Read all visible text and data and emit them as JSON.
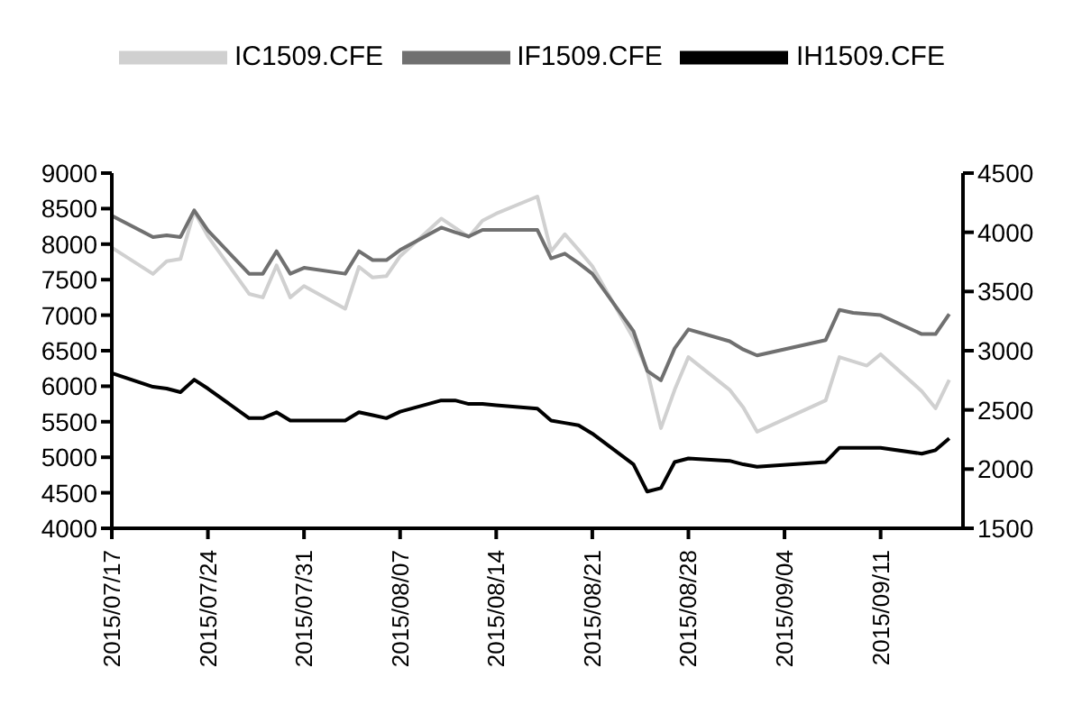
{
  "chart_data": {
    "type": "line",
    "legend": "top",
    "x": [
      "2015-07-17",
      "2015-07-20",
      "2015-07-21",
      "2015-07-22",
      "2015-07-23",
      "2015-07-24",
      "2015-07-27",
      "2015-07-28",
      "2015-07-29",
      "2015-07-30",
      "2015-07-31",
      "2015-08-03",
      "2015-08-04",
      "2015-08-05",
      "2015-08-06",
      "2015-08-07",
      "2015-08-10",
      "2015-08-11",
      "2015-08-12",
      "2015-08-13",
      "2015-08-14",
      "2015-08-17",
      "2015-08-18",
      "2015-08-19",
      "2015-08-20",
      "2015-08-21",
      "2015-08-24",
      "2015-08-25",
      "2015-08-26",
      "2015-08-27",
      "2015-08-28",
      "2015-08-31",
      "2015-09-01",
      "2015-09-02",
      "2015-09-07",
      "2015-09-08",
      "2015-09-09",
      "2015-09-10",
      "2015-09-11",
      "2015-09-14",
      "2015-09-15",
      "2015-09-16"
    ],
    "series": [
      {
        "name": "IC1509.CFE",
        "color": "#d0d0d0",
        "values": [
          7950,
          7580,
          7760,
          7790,
          8460,
          8110,
          7300,
          7250,
          7700,
          7250,
          7410,
          7090,
          7680,
          7530,
          7550,
          7830,
          8360,
          8230,
          8100,
          8330,
          8430,
          8670,
          7900,
          8140,
          7920,
          7690,
          6670,
          6220,
          5410,
          5950,
          6410,
          5950,
          5700,
          5360,
          5800,
          6410,
          6350,
          6290,
          6450,
          5930,
          5690,
          6090
        ]
      },
      {
        "name": "IF1509.CFE",
        "color": "#707070",
        "axis": "y2",
        "values": [
          4140,
          3960,
          3975,
          3960,
          4185,
          4015,
          3650,
          3650,
          3840,
          3650,
          3700,
          3650,
          3840,
          3765,
          3765,
          3850,
          4040,
          4000,
          3965,
          4020,
          4020,
          4020,
          3780,
          3820,
          3740,
          3650,
          3165,
          2830,
          2750,
          3020,
          3180,
          3080,
          3010,
          2960,
          3090,
          3345,
          3320,
          3310,
          3300,
          3140,
          3140,
          3310
        ]
      },
      {
        "name": "IH1509.CFE",
        "color": "#000000",
        "axis": "y2",
        "values": [
          2810,
          2695,
          2680,
          2650,
          2755,
          2680,
          2430,
          2430,
          2480,
          2410,
          2410,
          2410,
          2480,
          2455,
          2430,
          2485,
          2580,
          2580,
          2550,
          2550,
          2540,
          2510,
          2410,
          2390,
          2370,
          2300,
          2040,
          1810,
          1840,
          2060,
          2090,
          2070,
          2040,
          2020,
          2060,
          2180,
          2180,
          2180,
          2180,
          2130,
          2160,
          2260
        ]
      }
    ],
    "xlim": [
      "2015-07-17",
      "2015-09-17"
    ],
    "xticks": [
      {
        "value": "2015-07-17",
        "label": "2015/07/17"
      },
      {
        "value": "2015-07-24",
        "label": "2015/07/24"
      },
      {
        "value": "2015-07-31",
        "label": "2015/07/31"
      },
      {
        "value": "2015-08-07",
        "label": "2015/08/07"
      },
      {
        "value": "2015-08-14",
        "label": "2015/08/14"
      },
      {
        "value": "2015-08-21",
        "label": "2015/08/21"
      },
      {
        "value": "2015-08-28",
        "label": "2015/08/28"
      },
      {
        "value": "2015-09-04",
        "label": "2015/09/04"
      },
      {
        "value": "2015-09-11",
        "label": "2015/09/11"
      }
    ],
    "ylim": [
      4000,
      9000
    ],
    "yticks": [
      4000,
      4500,
      5000,
      5500,
      6000,
      6500,
      7000,
      7500,
      8000,
      8500,
      9000
    ],
    "y2lim": [
      1500,
      4500
    ],
    "y2ticks": [
      1500,
      2000,
      2500,
      3000,
      3500,
      4000,
      4500
    ]
  }
}
